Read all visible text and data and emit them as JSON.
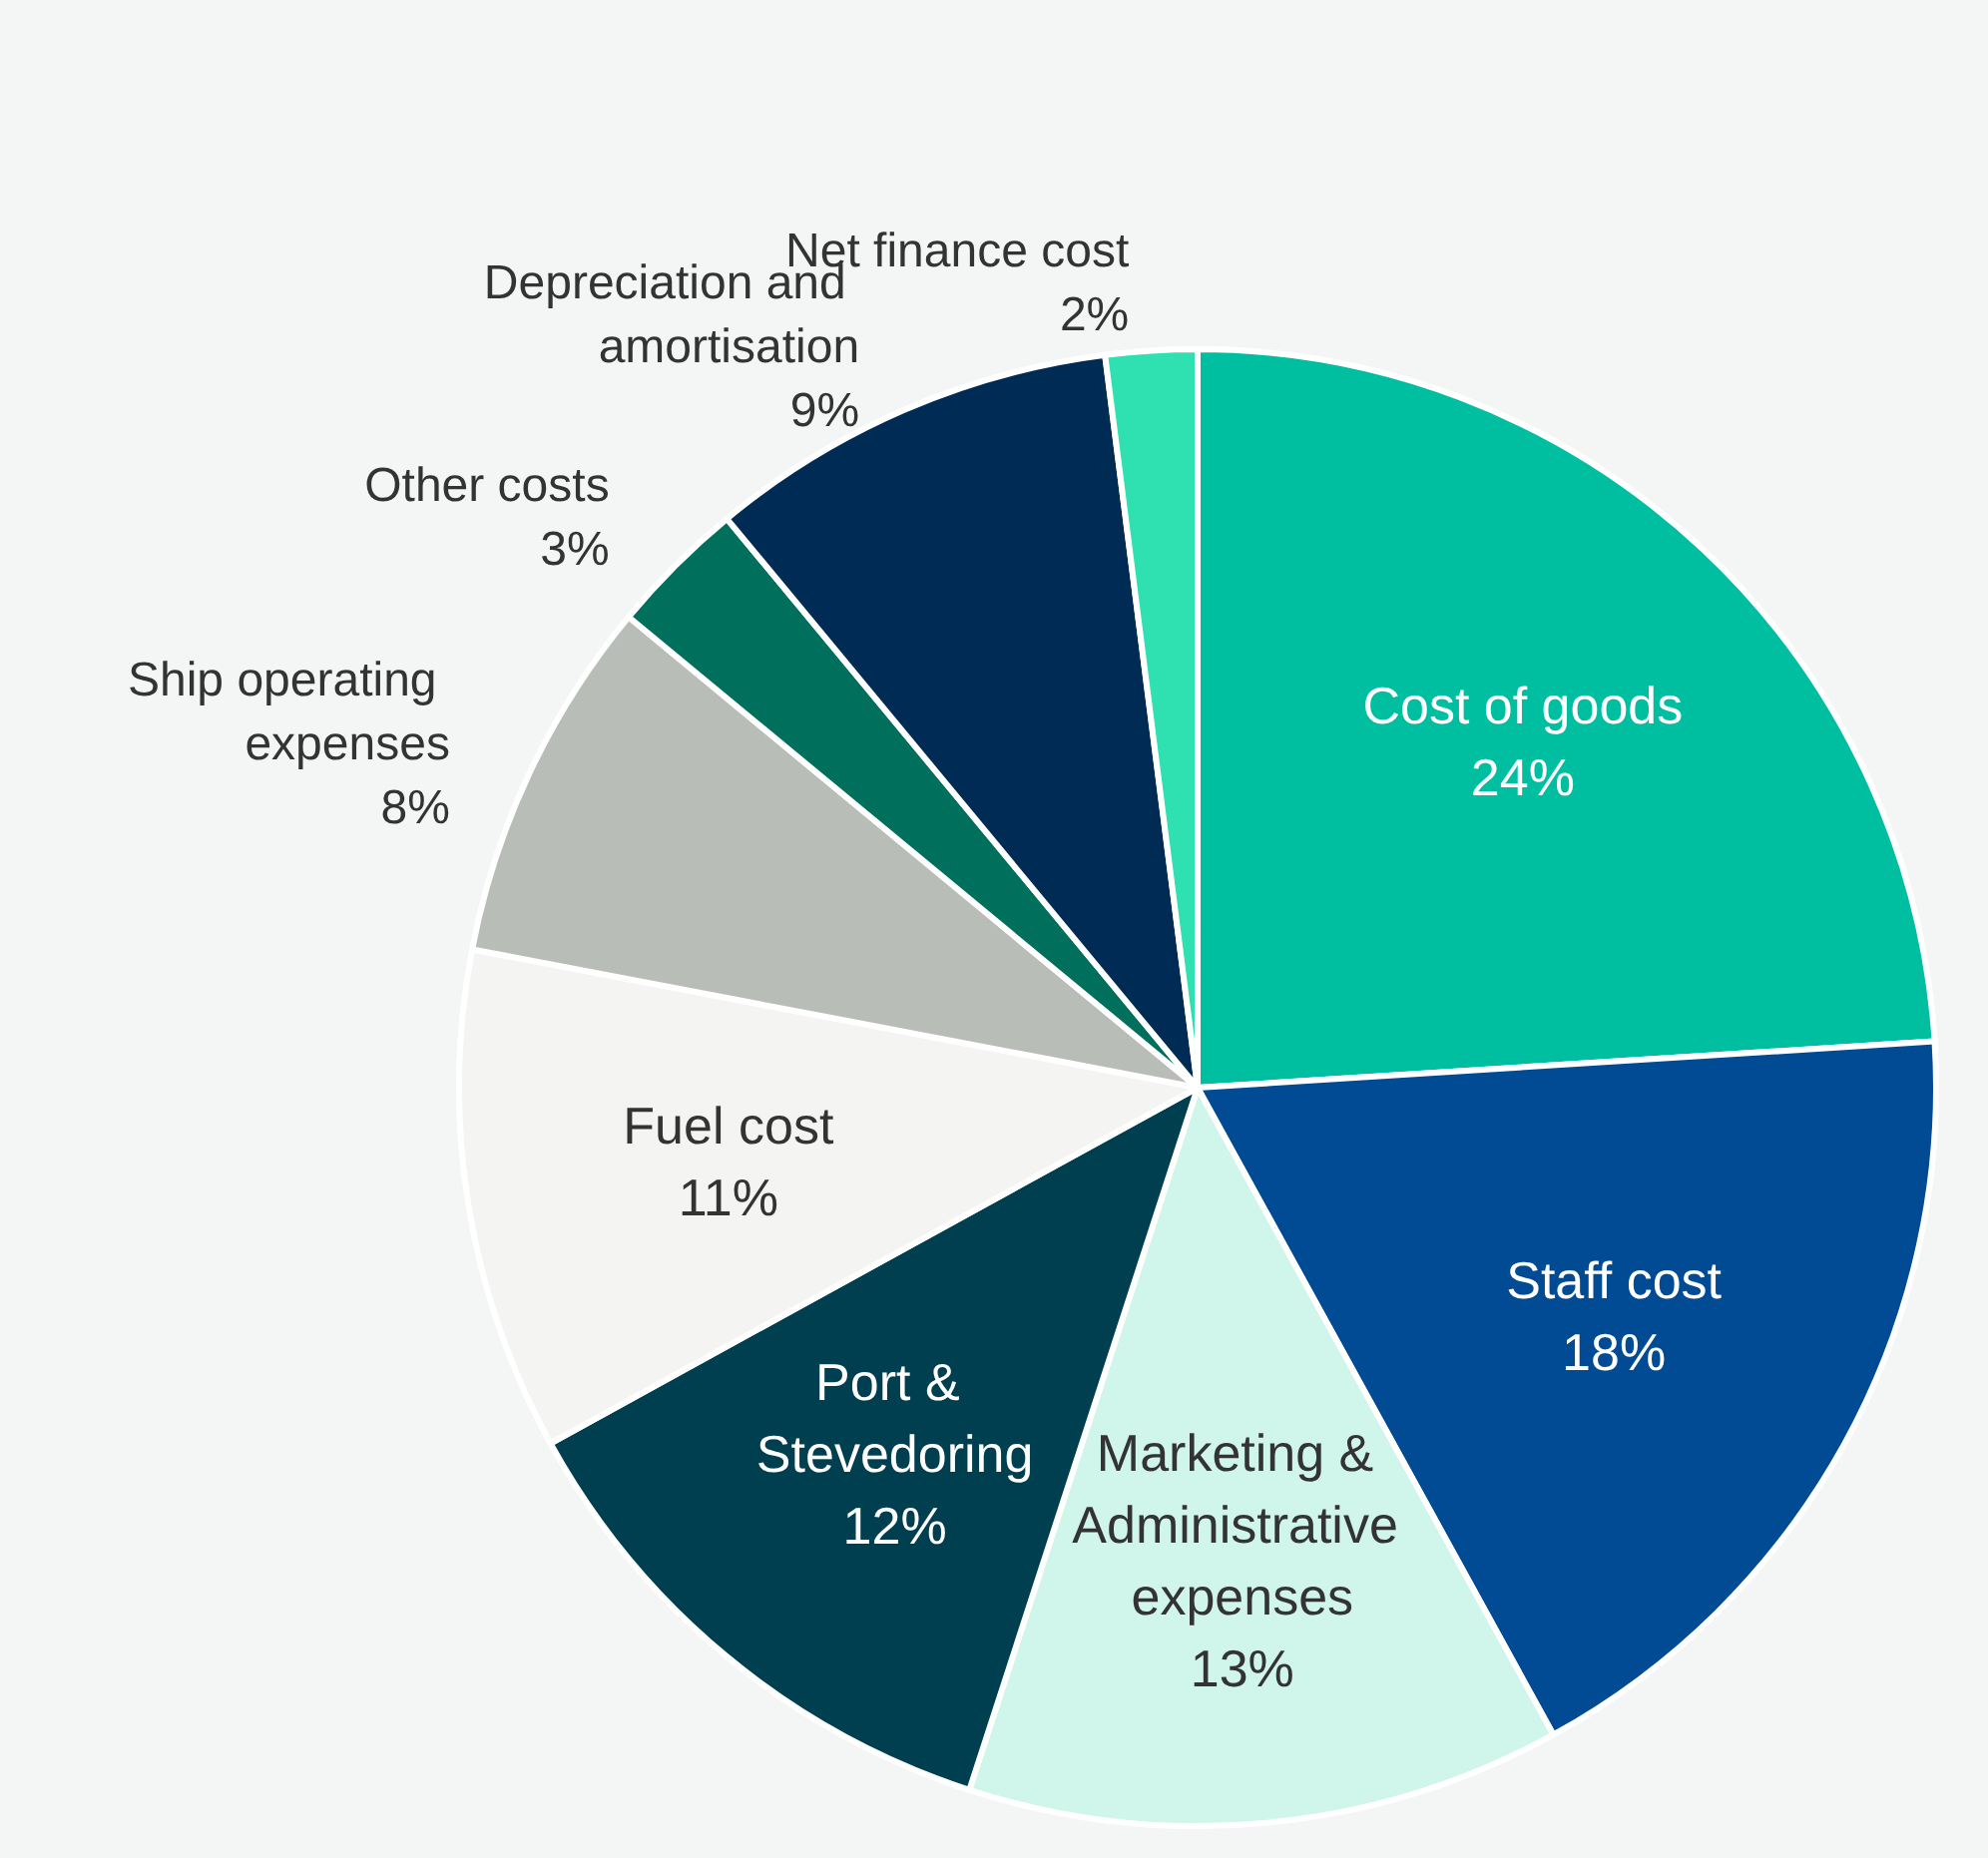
{
  "chart_data": {
    "type": "pie",
    "categories": [
      "Cost of goods",
      "Staff cost",
      "Marketing & Administrative expenses",
      "Port & Stevedoring",
      "Fuel cost",
      "Ship operating expenses",
      "Other costs",
      "Depreciation and amortisation",
      "Net finance cost"
    ],
    "values": [
      24,
      18,
      13,
      12,
      11,
      8,
      3,
      9,
      2
    ],
    "value_labels": [
      "24%",
      "18%",
      "13%",
      "12%",
      "11%",
      "8%",
      "3%",
      "9%",
      "2%"
    ],
    "colors": [
      "#00bfa0",
      "#004b93",
      "#d0f5ea",
      "#003f4f",
      "#f4f5f3",
      "#b9bdb7",
      "#00705c",
      "#002b55",
      "#2fe0b0"
    ],
    "legend": false
  }
}
